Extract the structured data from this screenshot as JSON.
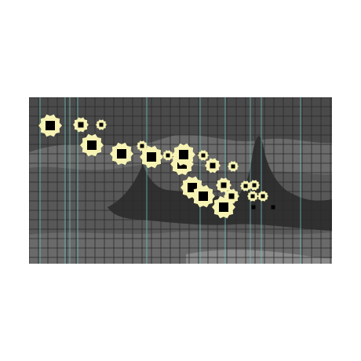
{
  "colors": {
    "background": "#4a4a4a",
    "terrain_dark": "#2f2f2f",
    "terrain_mid": "#5c5c5c",
    "terrain_light": "#8a8a8a",
    "grid": "#2a2a2a",
    "cyan_line": "#6fc7c0",
    "blob": "#f7f3b4",
    "square": "#000000"
  },
  "markers": [
    {
      "size": "large",
      "kind": "flower"
    },
    {
      "size": "medium",
      "kind": "flower"
    },
    {
      "size": "small",
      "kind": "flower"
    },
    {
      "size": "large",
      "kind": "flower"
    },
    {
      "size": "large",
      "kind": "flower"
    },
    {
      "size": "small",
      "kind": "flower"
    },
    {
      "size": "large",
      "kind": "flower"
    },
    {
      "size": "small",
      "kind": "flower"
    },
    {
      "size": "large",
      "kind": "flower"
    },
    {
      "size": "large",
      "kind": "flower"
    },
    {
      "size": "small",
      "kind": "flower"
    },
    {
      "size": "medium",
      "kind": "flower"
    },
    {
      "size": "small",
      "kind": "flower"
    },
    {
      "size": "large",
      "kind": "flower"
    },
    {
      "size": "large",
      "kind": "flower"
    },
    {
      "size": "medium",
      "kind": "flower"
    },
    {
      "size": "large",
      "kind": "flower"
    },
    {
      "size": "medium",
      "kind": "flower"
    },
    {
      "size": "small",
      "kind": "flower"
    },
    {
      "size": "small",
      "kind": "flower"
    },
    {
      "size": "small",
      "kind": "flower"
    },
    {
      "size": "small",
      "kind": "flower"
    },
    {
      "size": "small",
      "kind": "square"
    },
    {
      "size": "tiny",
      "kind": "square"
    }
  ]
}
